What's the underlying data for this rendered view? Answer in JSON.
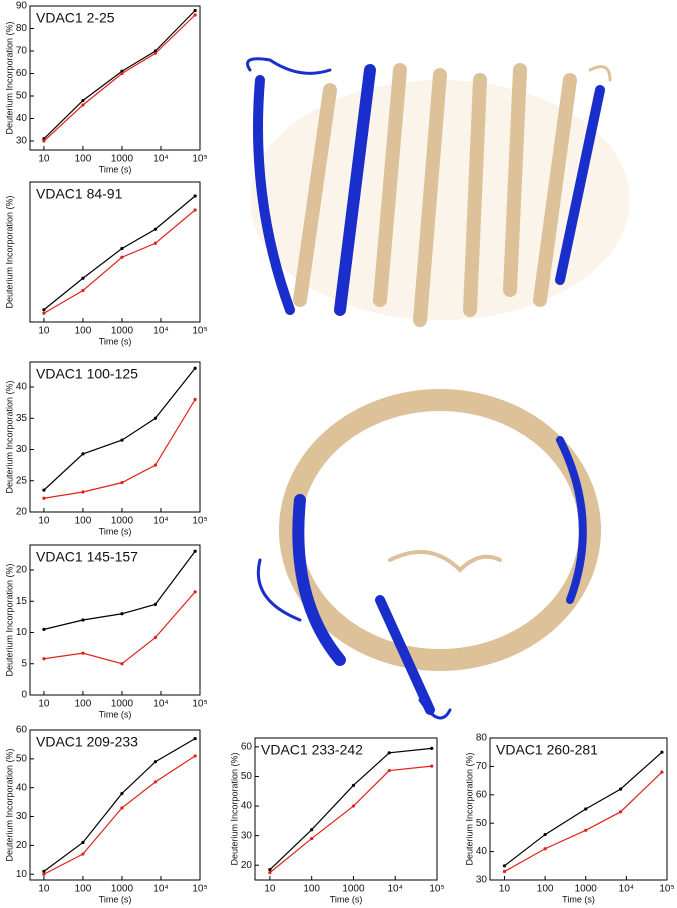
{
  "chart_data": [
    {
      "type": "line",
      "title": "VDAC1 2-25",
      "x_label": "Time (s)",
      "y_label": "Deuterium Incorporation (%)",
      "xscale": "log",
      "x": [
        10,
        100,
        1000,
        7200,
        75000
      ],
      "xlim": [
        4.4,
        100000
      ],
      "xticks": [
        10,
        100,
        1000,
        {
          "value": 10000,
          "label": "10⁴"
        },
        {
          "value": 100000,
          "label": "10⁵"
        }
      ],
      "ylim": [
        26,
        90
      ],
      "yticks": [
        30,
        40,
        50,
        60,
        70,
        80,
        90
      ],
      "series": [
        {
          "color": "#000000",
          "values": [
            31,
            48,
            61,
            70,
            88
          ]
        },
        {
          "color": "#e0201b",
          "values": [
            30,
            46,
            60,
            69,
            86
          ]
        }
      ]
    },
    {
      "type": "line",
      "title": "VDAC1 84-91",
      "x_label": "Time (s)",
      "y_label": "Deuterium Incorporation (%)",
      "xscale": "log",
      "x": [
        10,
        100,
        1000,
        7200,
        75000
      ],
      "xlim": [
        4.4,
        100000
      ],
      "xticks": [
        10,
        100,
        1000,
        {
          "value": 10000,
          "label": "10⁴"
        },
        {
          "value": 100000,
          "label": "10⁵"
        }
      ],
      "ylim": [
        10,
        90
      ],
      "series": [
        {
          "color": "#000000",
          "values": [
            17,
            35,
            52,
            63,
            82
          ]
        },
        {
          "color": "#e0201b",
          "values": [
            15,
            28,
            47,
            55,
            74
          ]
        }
      ]
    },
    {
      "type": "line",
      "title": "VDAC1 100-125",
      "x_label": "Time (s)",
      "y_label": "Deuterium Incorporation (%)",
      "xscale": "log",
      "x": [
        10,
        100,
        1000,
        7200,
        75000
      ],
      "xlim": [
        4.4,
        100000
      ],
      "xticks": [
        10,
        100,
        1000,
        {
          "value": 10000,
          "label": "10⁴"
        },
        {
          "value": 100000,
          "label": "10⁵"
        }
      ],
      "ylim": [
        20,
        44
      ],
      "yticks": [
        20,
        25,
        30,
        35,
        40
      ],
      "series": [
        {
          "color": "#000000",
          "values": [
            23.5,
            29.3,
            31.5,
            35,
            43
          ]
        },
        {
          "color": "#e0201b",
          "values": [
            22.2,
            23.2,
            24.7,
            27.5,
            38
          ]
        }
      ]
    },
    {
      "type": "line",
      "title": "VDAC1 145-157",
      "x_label": "Time (s)",
      "y_label": "Deuterium Incorporation (%)",
      "xscale": "log",
      "x": [
        10,
        100,
        1000,
        7200,
        75000
      ],
      "xlim": [
        4.4,
        100000
      ],
      "xticks": [
        10,
        100,
        1000,
        {
          "value": 10000,
          "label": "10⁴"
        },
        {
          "value": 100000,
          "label": "10⁵"
        }
      ],
      "ylim": [
        0,
        24
      ],
      "yticks": [
        0,
        5,
        10,
        15,
        20
      ],
      "series": [
        {
          "color": "#000000",
          "values": [
            10.5,
            12,
            13,
            14.5,
            23
          ]
        },
        {
          "color": "#e0201b",
          "values": [
            5.8,
            6.7,
            5,
            9.2,
            16.5
          ]
        }
      ]
    },
    {
      "type": "line",
      "title": "VDAC1 209-233",
      "x_label": "Time (s)",
      "y_label": "Deuterium Incorporation (%)",
      "xscale": "log",
      "x": [
        10,
        100,
        1000,
        7200,
        75000
      ],
      "xlim": [
        4.4,
        100000
      ],
      "xticks": [
        10,
        100,
        1000,
        {
          "value": 10000,
          "label": "10⁴"
        },
        {
          "value": 100000,
          "label": "10⁵"
        }
      ],
      "ylim": [
        8,
        60
      ],
      "yticks": [
        10,
        20,
        30,
        40,
        50,
        60
      ],
      "series": [
        {
          "color": "#000000",
          "values": [
            11,
            21,
            38,
            49,
            57
          ]
        },
        {
          "color": "#e0201b",
          "values": [
            10,
            17,
            33,
            42,
            51
          ]
        }
      ]
    },
    {
      "type": "line",
      "title": "VDAC1 233-242",
      "x_label": "Time (s)",
      "y_label": "Deuterium Incorporation (%)",
      "xscale": "log",
      "x": [
        10,
        100,
        1000,
        7200,
        75000
      ],
      "xlim": [
        4.4,
        100000
      ],
      "xticks": [
        10,
        100,
        1000,
        {
          "value": 10000,
          "label": "10⁴"
        },
        {
          "value": 100000,
          "label": "10⁵"
        }
      ],
      "ylim": [
        15,
        63
      ],
      "yticks": [
        20,
        30,
        40,
        50,
        60
      ],
      "series": [
        {
          "color": "#000000",
          "values": [
            18.5,
            32,
            47,
            58,
            59.5
          ]
        },
        {
          "color": "#e0201b",
          "values": [
            17.5,
            29,
            40,
            52,
            53.5
          ]
        }
      ]
    },
    {
      "type": "line",
      "title": "VDAC1 260-281",
      "x_label": "Time (s)",
      "y_label": "Deuterium Incorporation (%)",
      "xscale": "log",
      "x": [
        10,
        100,
        1000,
        7200,
        75000
      ],
      "xlim": [
        4.4,
        100000
      ],
      "xticks": [
        10,
        100,
        1000,
        {
          "value": 10000,
          "label": "10⁴"
        },
        {
          "value": 100000,
          "label": "10⁵"
        }
      ],
      "ylim": [
        30,
        80
      ],
      "yticks": [
        30,
        40,
        50,
        60,
        70,
        80
      ],
      "series": [
        {
          "color": "#000000",
          "values": [
            35,
            46,
            55,
            62,
            75
          ]
        },
        {
          "color": "#e0201b",
          "values": [
            33,
            41,
            47.5,
            54,
            68
          ]
        }
      ]
    }
  ]
}
